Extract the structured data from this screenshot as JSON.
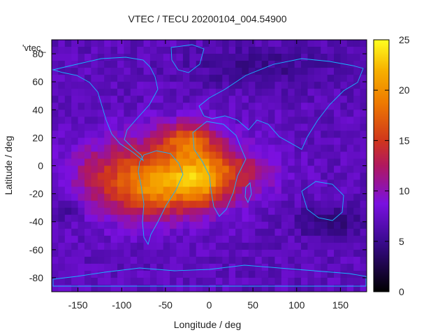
{
  "chart_data": {
    "type": "heatmap",
    "title": "VTEC / TECU 20200104_004.54900",
    "xlabel": "Longitude / deg",
    "ylabel": "Latitude / deg",
    "xlim": [
      -180,
      180
    ],
    "ylim": [
      -90,
      90
    ],
    "xticks": [
      -150,
      -100,
      -50,
      0,
      50,
      100,
      150
    ],
    "yticks": [
      80,
      60,
      40,
      20,
      0,
      -20,
      -40,
      -60,
      -80
    ],
    "colorbar": {
      "min": 0,
      "max": 25,
      "ticks": [
        0,
        5,
        10,
        15,
        20,
        25
      ]
    },
    "colormap": "black-purple-red-orange-yellow",
    "overlay": "coastlines",
    "series_label": "'vtec_",
    "features": [
      {
        "name": "equatorial-anomaly-peak",
        "lon": -10,
        "lat": -10,
        "value": 23
      },
      {
        "name": "northern-crest",
        "lon": -25,
        "lat": 20,
        "value": 21
      },
      {
        "name": "southern-crest",
        "lon": -60,
        "lat": -20,
        "value": 19
      },
      {
        "name": "pacific-extension",
        "lon": -120,
        "lat": -10,
        "value": 16
      }
    ],
    "background_value": 7
  }
}
